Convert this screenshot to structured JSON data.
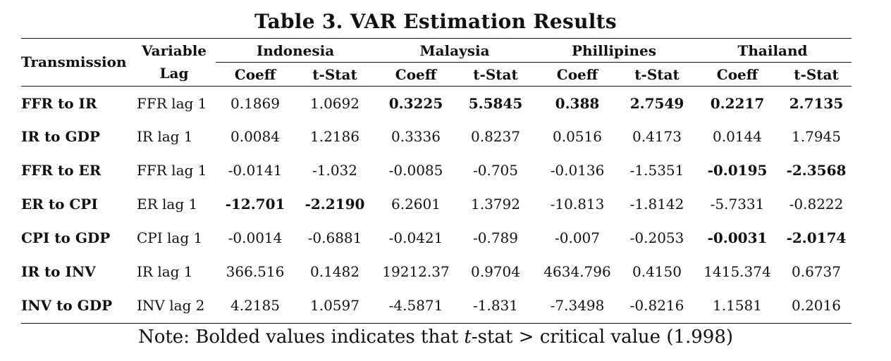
{
  "title": "Table 3. VAR Estimation Results",
  "header": {
    "transmission": "Transmission",
    "variable_lag_line1": "Variable",
    "variable_lag_line2": "Lag",
    "countries": [
      "Indonesia",
      "Malaysia",
      "Phillipines",
      "Thailand"
    ],
    "coeff": "Coeff",
    "tstat": "t-Stat"
  },
  "rows": [
    {
      "transmission": "FFR to IR",
      "lag": "FFR lag 1",
      "values": [
        "0.1869",
        "1.0692",
        "0.3225",
        "5.5845",
        "0.388",
        "2.7549",
        "0.2217",
        "2.7135"
      ],
      "bold": [
        false,
        false,
        true,
        true,
        true,
        true,
        true,
        true
      ]
    },
    {
      "transmission": "IR to GDP",
      "lag": "IR lag 1",
      "values": [
        "0.0084",
        "1.2186",
        "0.3336",
        "0.8237",
        "0.0516",
        "0.4173",
        "0.0144",
        "1.7945"
      ],
      "bold": [
        false,
        false,
        false,
        false,
        false,
        false,
        false,
        false
      ]
    },
    {
      "transmission": "FFR to ER",
      "lag": "FFR lag 1",
      "values": [
        "-0.0141",
        "-1.032",
        "-0.0085",
        "-0.705",
        "-0.0136",
        "-1.5351",
        "-0.0195",
        "-2.3568"
      ],
      "bold": [
        false,
        false,
        false,
        false,
        false,
        false,
        true,
        true
      ]
    },
    {
      "transmission": "ER to CPI",
      "lag": "ER lag 1",
      "values": [
        "-12.701",
        "-2.2190",
        "6.2601",
        "1.3792",
        "-10.813",
        "-1.8142",
        "-5.7331",
        "-0.8222"
      ],
      "bold": [
        true,
        true,
        false,
        false,
        false,
        false,
        false,
        false
      ]
    },
    {
      "transmission": "CPI to GDP",
      "lag": "CPI lag 1",
      "values": [
        "-0.0014",
        "-0.6881",
        "-0.0421",
        "-0.789",
        "-0.007",
        "-0.2053",
        "-0.0031",
        "-2.0174"
      ],
      "bold": [
        false,
        false,
        false,
        false,
        false,
        false,
        true,
        true
      ]
    },
    {
      "transmission": "IR to INV",
      "lag": "IR lag 1",
      "values": [
        "366.516",
        "0.1482",
        "19212.37",
        "0.9704",
        "4634.796",
        "0.4150",
        "1415.374",
        "0.6737"
      ],
      "bold": [
        false,
        false,
        false,
        false,
        false,
        false,
        false,
        false
      ]
    },
    {
      "transmission": "INV to GDP",
      "lag": "INV lag 2",
      "values": [
        "4.2185",
        "1.0597",
        "-4.5871",
        "-1.831",
        "-7.3498",
        "-0.8216",
        "1.1581",
        "0.2016"
      ],
      "bold": [
        false,
        false,
        false,
        false,
        false,
        false,
        false,
        false
      ]
    }
  ],
  "note": {
    "prefix": "Note: Bolded values indicates that ",
    "italic": "t",
    "suffix": "-stat > critical value (1.998)"
  }
}
